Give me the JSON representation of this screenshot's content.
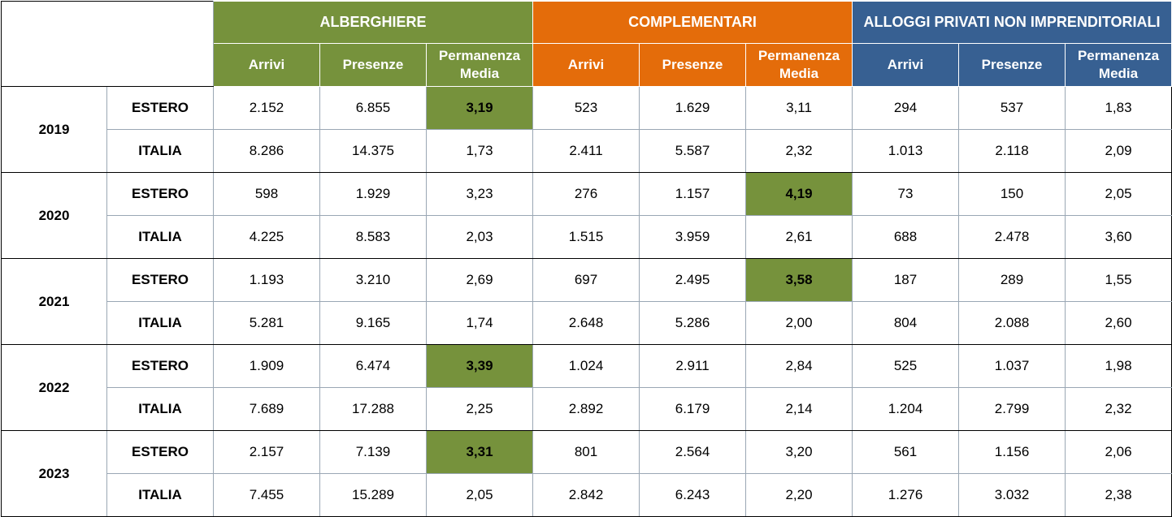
{
  "chart_data": {
    "type": "table",
    "groups": [
      {
        "label": "ALBERGHIERE",
        "color": "#76923c"
      },
      {
        "label": "COMPLEMENTARI",
        "color": "#e46c0a"
      },
      {
        "label": "ALLOGGI PRIVATI NON IMPRENDITORIALI",
        "color": "#376092"
      }
    ],
    "columns": [
      "Arrivi",
      "Presenze",
      "Permanenza Media"
    ],
    "highlight_color": "#76923c",
    "years": [
      {
        "year": "2019",
        "rows": [
          {
            "origin": "ESTERO",
            "values": [
              "2.152",
              "6.855",
              "3,19",
              "523",
              "1.629",
              "3,11",
              "294",
              "537",
              "1,83"
            ],
            "highlight": [
              2
            ]
          },
          {
            "origin": "ITALIA",
            "values": [
              "8.286",
              "14.375",
              "1,73",
              "2.411",
              "5.587",
              "2,32",
              "1.013",
              "2.118",
              "2,09"
            ],
            "highlight": []
          }
        ]
      },
      {
        "year": "2020",
        "rows": [
          {
            "origin": "ESTERO",
            "values": [
              "598",
              "1.929",
              "3,23",
              "276",
              "1.157",
              "4,19",
              "73",
              "150",
              "2,05"
            ],
            "highlight": [
              5
            ]
          },
          {
            "origin": "ITALIA",
            "values": [
              "4.225",
              "8.583",
              "2,03",
              "1.515",
              "3.959",
              "2,61",
              "688",
              "2.478",
              "3,60"
            ],
            "highlight": []
          }
        ]
      },
      {
        "year": "2021",
        "rows": [
          {
            "origin": "ESTERO",
            "values": [
              "1.193",
              "3.210",
              "2,69",
              "697",
              "2.495",
              "3,58",
              "187",
              "289",
              "1,55"
            ],
            "highlight": [
              5
            ]
          },
          {
            "origin": "ITALIA",
            "values": [
              "5.281",
              "9.165",
              "1,74",
              "2.648",
              "5.286",
              "2,00",
              "804",
              "2.088",
              "2,60"
            ],
            "highlight": []
          }
        ]
      },
      {
        "year": "2022",
        "rows": [
          {
            "origin": "ESTERO",
            "values": [
              "1.909",
              "6.474",
              "3,39",
              "1.024",
              "2.911",
              "2,84",
              "525",
              "1.037",
              "1,98"
            ],
            "highlight": [
              2
            ]
          },
          {
            "origin": "ITALIA",
            "values": [
              "7.689",
              "17.288",
              "2,25",
              "2.892",
              "6.179",
              "2,14",
              "1.204",
              "2.799",
              "2,32"
            ],
            "highlight": []
          }
        ]
      },
      {
        "year": "2023",
        "rows": [
          {
            "origin": "ESTERO",
            "values": [
              "2.157",
              "7.139",
              "3,31",
              "801",
              "2.564",
              "3,20",
              "561",
              "1.156",
              "2,06"
            ],
            "highlight": [
              2
            ]
          },
          {
            "origin": "ITALIA",
            "values": [
              "7.455",
              "15.289",
              "2,05",
              "2.842",
              "6.243",
              "2,20",
              "1.276",
              "3.032",
              "2,38"
            ],
            "highlight": []
          }
        ]
      }
    ]
  }
}
